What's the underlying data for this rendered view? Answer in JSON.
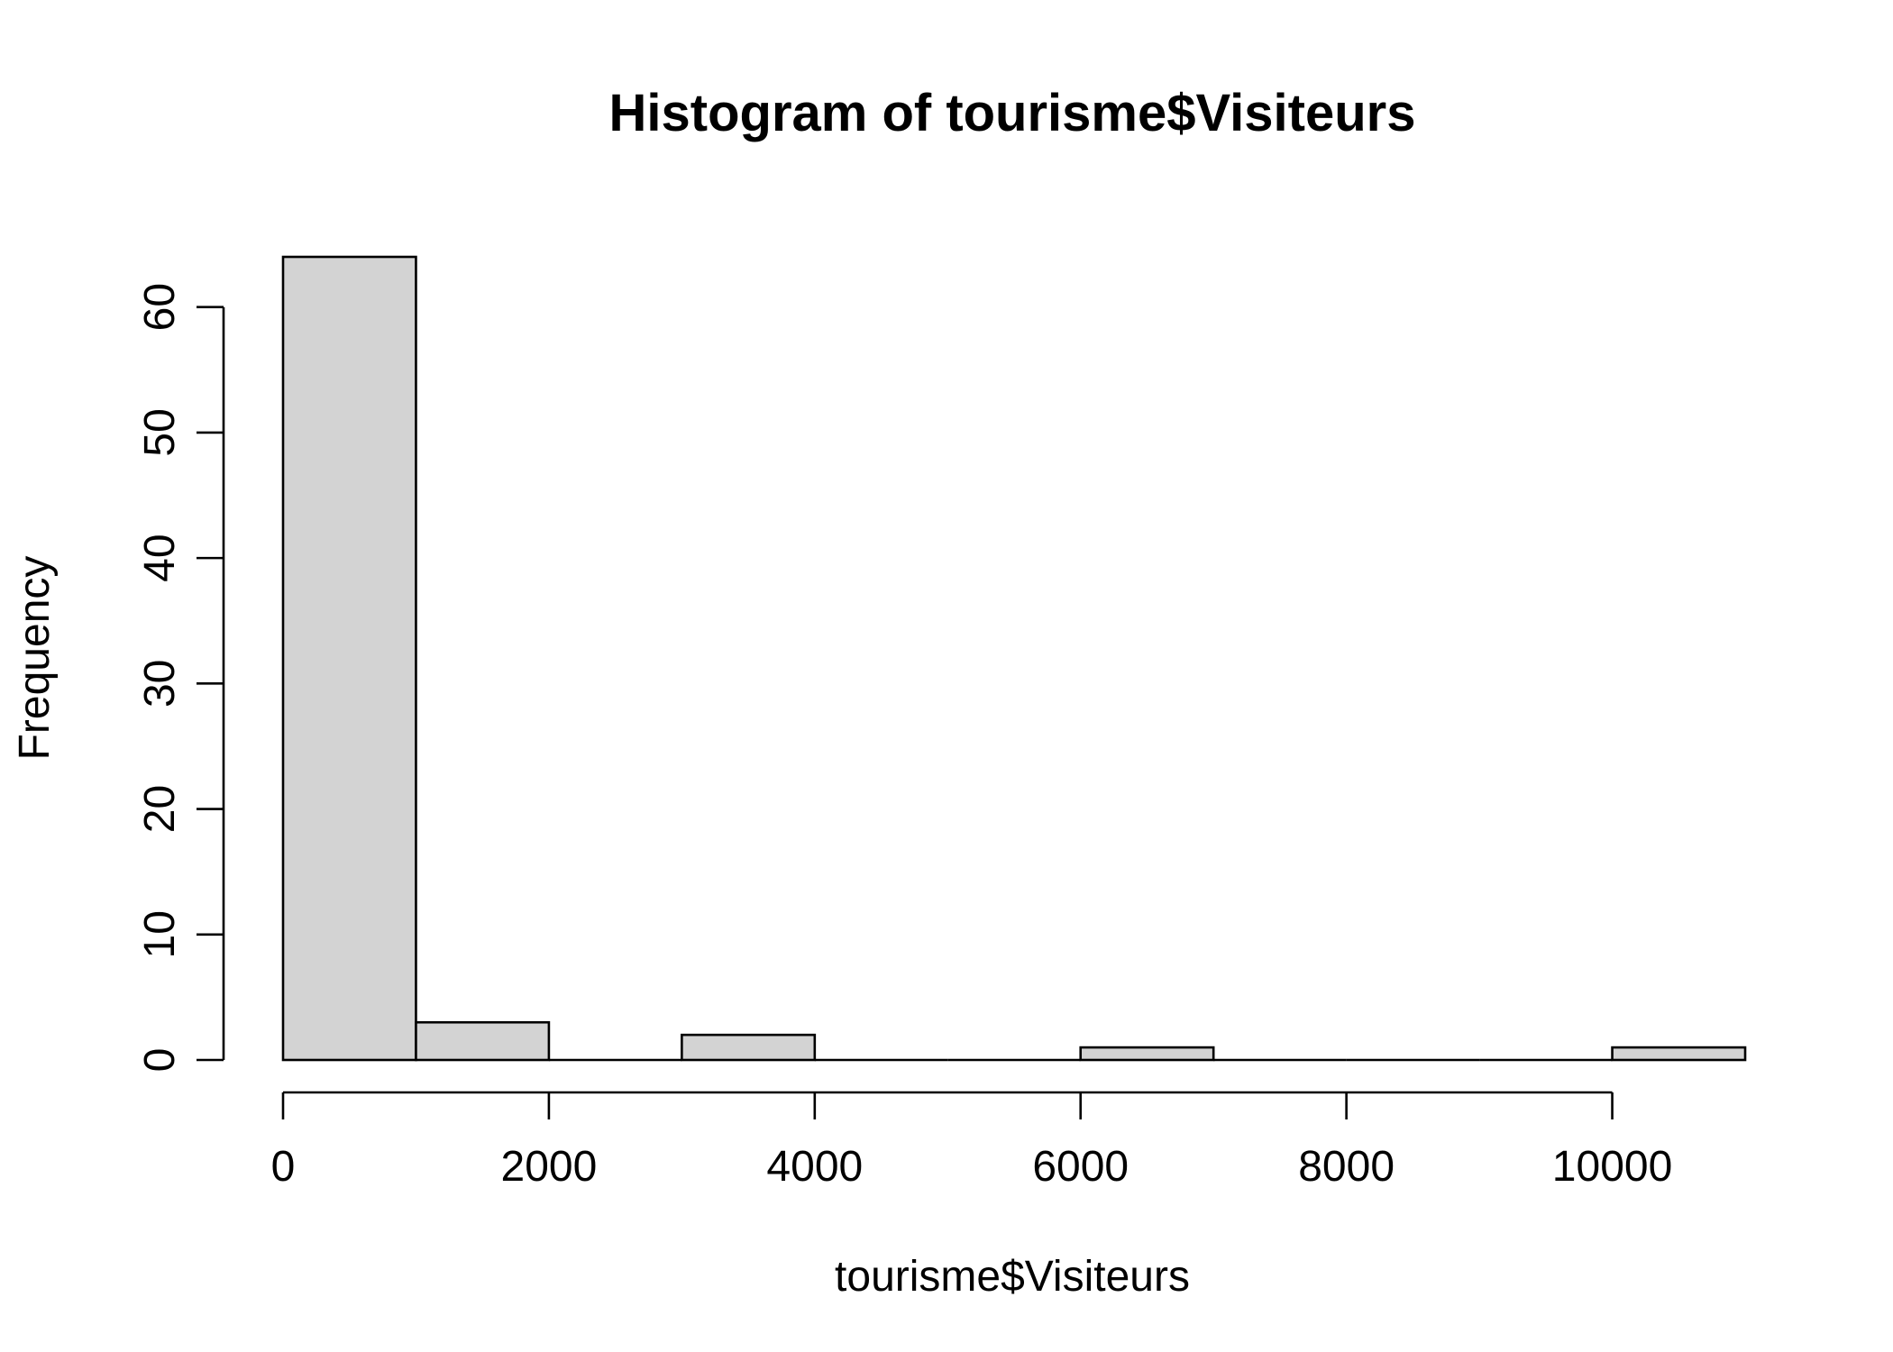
{
  "chart_data": {
    "type": "bar",
    "title": "Histogram of tourisme$Visiteurs",
    "xlabel": "tourisme$Visiteurs",
    "ylabel": "Frequency",
    "bins": [
      {
        "start": 0,
        "end": 1000,
        "count": 64
      },
      {
        "start": 1000,
        "end": 2000,
        "count": 3
      },
      {
        "start": 2000,
        "end": 3000,
        "count": 0
      },
      {
        "start": 3000,
        "end": 4000,
        "count": 2
      },
      {
        "start": 4000,
        "end": 5000,
        "count": 0
      },
      {
        "start": 5000,
        "end": 6000,
        "count": 0
      },
      {
        "start": 6000,
        "end": 7000,
        "count": 1
      },
      {
        "start": 7000,
        "end": 8000,
        "count": 0
      },
      {
        "start": 8000,
        "end": 9000,
        "count": 0
      },
      {
        "start": 9000,
        "end": 10000,
        "count": 0
      },
      {
        "start": 10000,
        "end": 11000,
        "count": 1
      }
    ],
    "xlim": [
      0,
      11000
    ],
    "ylim": [
      0,
      64
    ],
    "x_ticks": [
      0,
      2000,
      4000,
      6000,
      8000,
      10000
    ],
    "y_ticks": [
      0,
      10,
      20,
      30,
      40,
      50,
      60
    ],
    "bar_color": "#d3d3d3",
    "grid": false,
    "legend": "none"
  }
}
